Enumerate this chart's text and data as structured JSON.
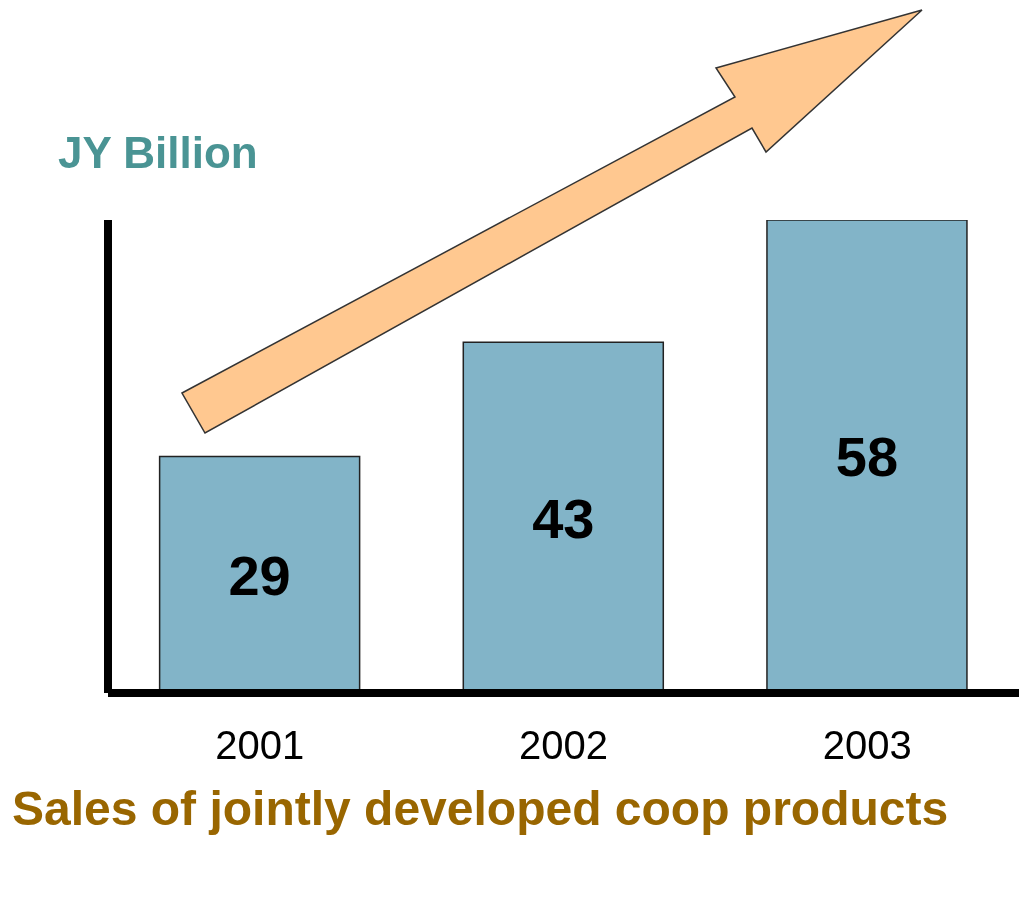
{
  "chart_data": {
    "type": "bar",
    "title": "Sales of jointly developed coop products",
    "ylabel": "JY Billion",
    "categories": [
      "2001",
      "2002",
      "2003"
    ],
    "values": [
      29,
      43,
      58
    ],
    "color": "#82b4c8",
    "data_labels": true
  }
}
